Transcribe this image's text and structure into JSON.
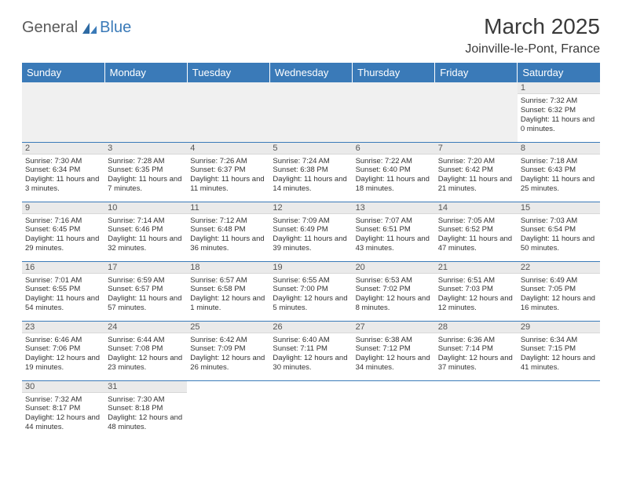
{
  "logo": {
    "text1": "General",
    "text2": "Blue"
  },
  "header": {
    "month_title": "March 2025",
    "location": "Joinville-le-Pont, France"
  },
  "colors": {
    "accent": "#3a7ab8",
    "header_text": "#ffffff",
    "daynum_bg": "#eaeaea",
    "empty_bg": "#f0f0f0",
    "text": "#333333",
    "border": "#3a7ab8"
  },
  "typography": {
    "title_fontsize": 28,
    "location_fontsize": 16,
    "dayhead_fontsize": 13,
    "cell_fontsize": 9.5
  },
  "day_headers": [
    "Sunday",
    "Monday",
    "Tuesday",
    "Wednesday",
    "Thursday",
    "Friday",
    "Saturday"
  ],
  "weeks": [
    [
      null,
      null,
      null,
      null,
      null,
      null,
      {
        "n": "1",
        "sunrise": "Sunrise: 7:32 AM",
        "sunset": "Sunset: 6:32 PM",
        "daylight": "Daylight: 11 hours and 0 minutes."
      }
    ],
    [
      {
        "n": "2",
        "sunrise": "Sunrise: 7:30 AM",
        "sunset": "Sunset: 6:34 PM",
        "daylight": "Daylight: 11 hours and 3 minutes."
      },
      {
        "n": "3",
        "sunrise": "Sunrise: 7:28 AM",
        "sunset": "Sunset: 6:35 PM",
        "daylight": "Daylight: 11 hours and 7 minutes."
      },
      {
        "n": "4",
        "sunrise": "Sunrise: 7:26 AM",
        "sunset": "Sunset: 6:37 PM",
        "daylight": "Daylight: 11 hours and 11 minutes."
      },
      {
        "n": "5",
        "sunrise": "Sunrise: 7:24 AM",
        "sunset": "Sunset: 6:38 PM",
        "daylight": "Daylight: 11 hours and 14 minutes."
      },
      {
        "n": "6",
        "sunrise": "Sunrise: 7:22 AM",
        "sunset": "Sunset: 6:40 PM",
        "daylight": "Daylight: 11 hours and 18 minutes."
      },
      {
        "n": "7",
        "sunrise": "Sunrise: 7:20 AM",
        "sunset": "Sunset: 6:42 PM",
        "daylight": "Daylight: 11 hours and 21 minutes."
      },
      {
        "n": "8",
        "sunrise": "Sunrise: 7:18 AM",
        "sunset": "Sunset: 6:43 PM",
        "daylight": "Daylight: 11 hours and 25 minutes."
      }
    ],
    [
      {
        "n": "9",
        "sunrise": "Sunrise: 7:16 AM",
        "sunset": "Sunset: 6:45 PM",
        "daylight": "Daylight: 11 hours and 29 minutes."
      },
      {
        "n": "10",
        "sunrise": "Sunrise: 7:14 AM",
        "sunset": "Sunset: 6:46 PM",
        "daylight": "Daylight: 11 hours and 32 minutes."
      },
      {
        "n": "11",
        "sunrise": "Sunrise: 7:12 AM",
        "sunset": "Sunset: 6:48 PM",
        "daylight": "Daylight: 11 hours and 36 minutes."
      },
      {
        "n": "12",
        "sunrise": "Sunrise: 7:09 AM",
        "sunset": "Sunset: 6:49 PM",
        "daylight": "Daylight: 11 hours and 39 minutes."
      },
      {
        "n": "13",
        "sunrise": "Sunrise: 7:07 AM",
        "sunset": "Sunset: 6:51 PM",
        "daylight": "Daylight: 11 hours and 43 minutes."
      },
      {
        "n": "14",
        "sunrise": "Sunrise: 7:05 AM",
        "sunset": "Sunset: 6:52 PM",
        "daylight": "Daylight: 11 hours and 47 minutes."
      },
      {
        "n": "15",
        "sunrise": "Sunrise: 7:03 AM",
        "sunset": "Sunset: 6:54 PM",
        "daylight": "Daylight: 11 hours and 50 minutes."
      }
    ],
    [
      {
        "n": "16",
        "sunrise": "Sunrise: 7:01 AM",
        "sunset": "Sunset: 6:55 PM",
        "daylight": "Daylight: 11 hours and 54 minutes."
      },
      {
        "n": "17",
        "sunrise": "Sunrise: 6:59 AM",
        "sunset": "Sunset: 6:57 PM",
        "daylight": "Daylight: 11 hours and 57 minutes."
      },
      {
        "n": "18",
        "sunrise": "Sunrise: 6:57 AM",
        "sunset": "Sunset: 6:58 PM",
        "daylight": "Daylight: 12 hours and 1 minute."
      },
      {
        "n": "19",
        "sunrise": "Sunrise: 6:55 AM",
        "sunset": "Sunset: 7:00 PM",
        "daylight": "Daylight: 12 hours and 5 minutes."
      },
      {
        "n": "20",
        "sunrise": "Sunrise: 6:53 AM",
        "sunset": "Sunset: 7:02 PM",
        "daylight": "Daylight: 12 hours and 8 minutes."
      },
      {
        "n": "21",
        "sunrise": "Sunrise: 6:51 AM",
        "sunset": "Sunset: 7:03 PM",
        "daylight": "Daylight: 12 hours and 12 minutes."
      },
      {
        "n": "22",
        "sunrise": "Sunrise: 6:49 AM",
        "sunset": "Sunset: 7:05 PM",
        "daylight": "Daylight: 12 hours and 16 minutes."
      }
    ],
    [
      {
        "n": "23",
        "sunrise": "Sunrise: 6:46 AM",
        "sunset": "Sunset: 7:06 PM",
        "daylight": "Daylight: 12 hours and 19 minutes."
      },
      {
        "n": "24",
        "sunrise": "Sunrise: 6:44 AM",
        "sunset": "Sunset: 7:08 PM",
        "daylight": "Daylight: 12 hours and 23 minutes."
      },
      {
        "n": "25",
        "sunrise": "Sunrise: 6:42 AM",
        "sunset": "Sunset: 7:09 PM",
        "daylight": "Daylight: 12 hours and 26 minutes."
      },
      {
        "n": "26",
        "sunrise": "Sunrise: 6:40 AM",
        "sunset": "Sunset: 7:11 PM",
        "daylight": "Daylight: 12 hours and 30 minutes."
      },
      {
        "n": "27",
        "sunrise": "Sunrise: 6:38 AM",
        "sunset": "Sunset: 7:12 PM",
        "daylight": "Daylight: 12 hours and 34 minutes."
      },
      {
        "n": "28",
        "sunrise": "Sunrise: 6:36 AM",
        "sunset": "Sunset: 7:14 PM",
        "daylight": "Daylight: 12 hours and 37 minutes."
      },
      {
        "n": "29",
        "sunrise": "Sunrise: 6:34 AM",
        "sunset": "Sunset: 7:15 PM",
        "daylight": "Daylight: 12 hours and 41 minutes."
      }
    ],
    [
      {
        "n": "30",
        "sunrise": "Sunrise: 7:32 AM",
        "sunset": "Sunset: 8:17 PM",
        "daylight": "Daylight: 12 hours and 44 minutes."
      },
      {
        "n": "31",
        "sunrise": "Sunrise: 7:30 AM",
        "sunset": "Sunset: 8:18 PM",
        "daylight": "Daylight: 12 hours and 48 minutes."
      },
      null,
      null,
      null,
      null,
      null
    ]
  ]
}
